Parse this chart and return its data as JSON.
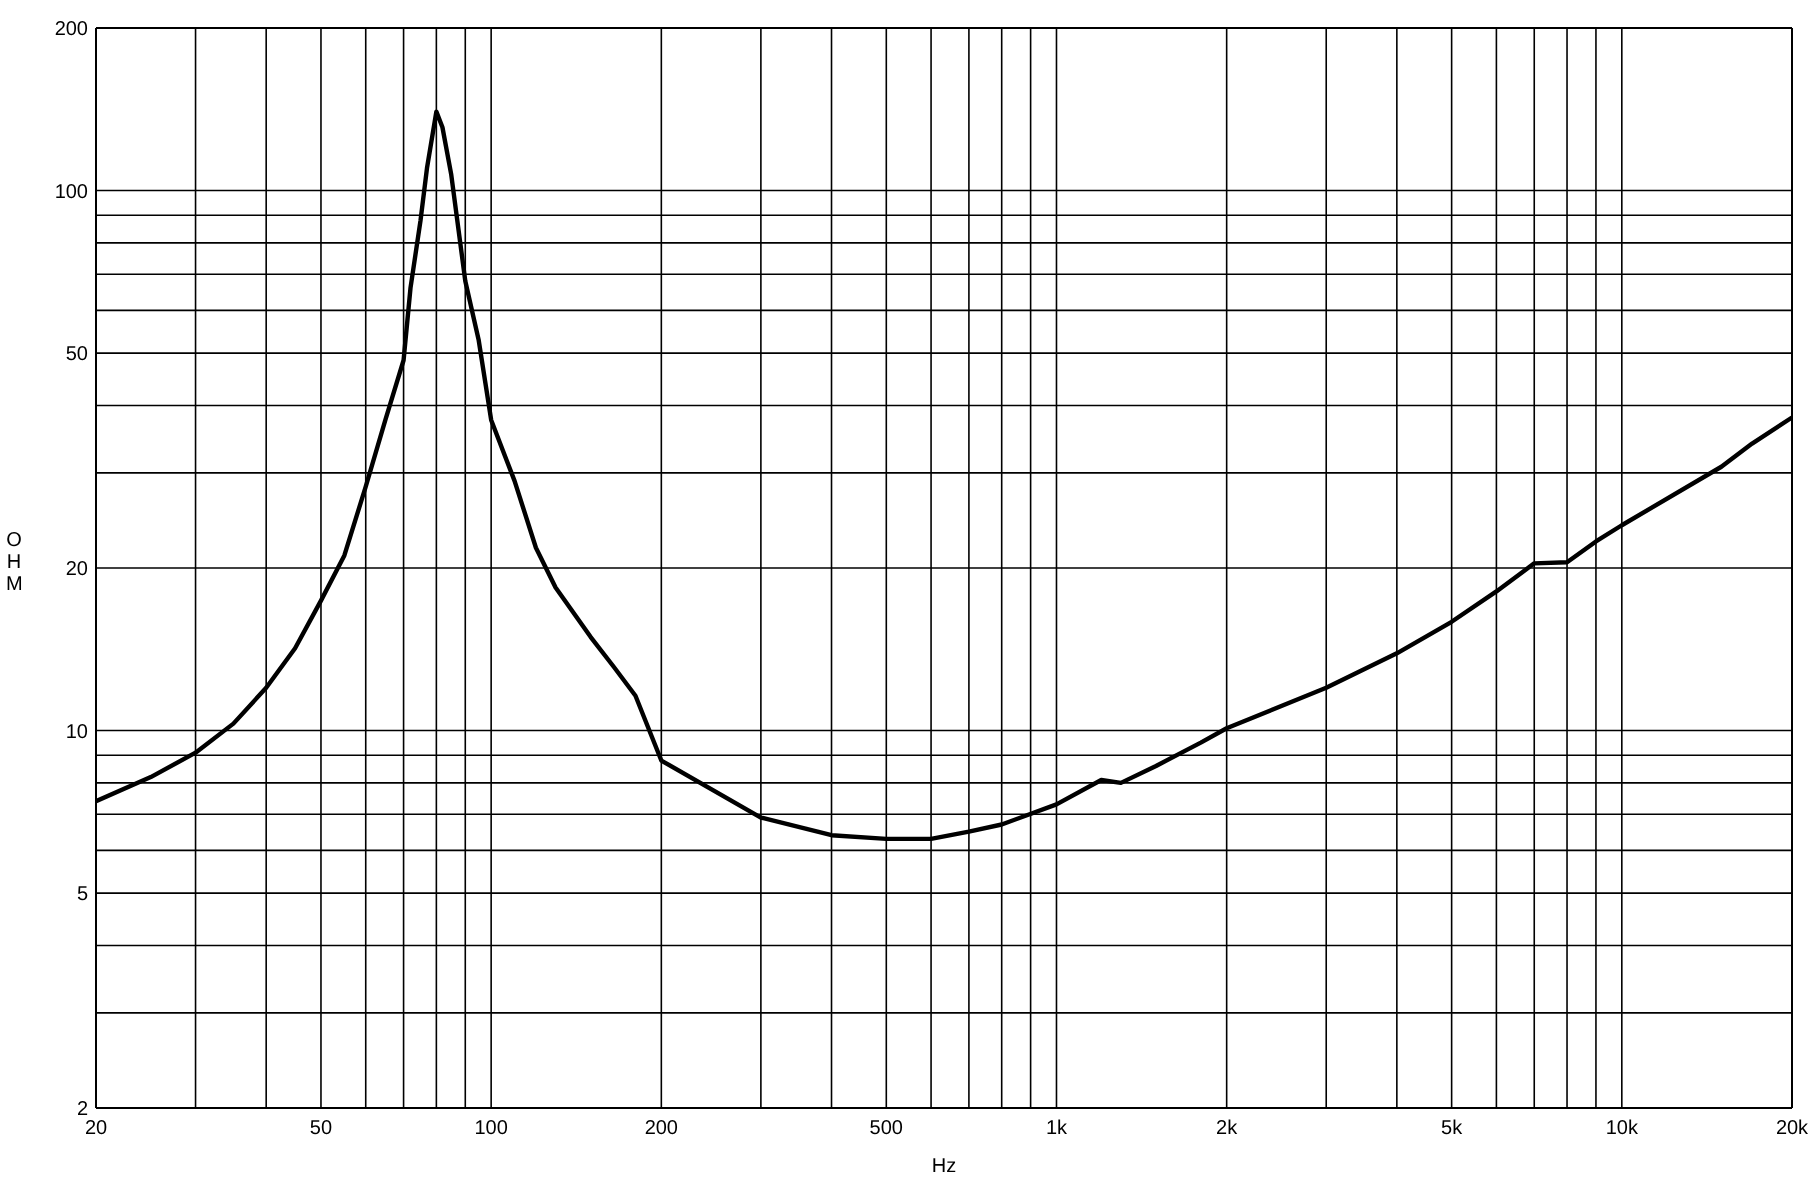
{
  "chart_data": {
    "type": "line",
    "xlabel": "Hz",
    "ylabel": "OHM",
    "log": "xy",
    "grid": true,
    "legend": false,
    "marker": "none",
    "line_style": "solid",
    "x": [
      20,
      25,
      30,
      35,
      40,
      45,
      50,
      55,
      60,
      65,
      70,
      72,
      75,
      77,
      80,
      82,
      85,
      90,
      95,
      100,
      110,
      120,
      130,
      150,
      165,
      180,
      200,
      300,
      400,
      500,
      600,
      700,
      800,
      1000,
      1200,
      1300,
      1500,
      1800,
      2000,
      3000,
      4000,
      5000,
      6000,
      7000,
      8000,
      9000,
      10000,
      15000,
      17000,
      20000
    ],
    "series": [
      {
        "color": "#000000",
        "values": [
          7.4,
          8.2,
          9.1,
          10.3,
          12.0,
          14.2,
          17.4,
          21.1,
          28.3,
          37.6,
          48.5,
          66,
          88,
          110,
          140,
          131,
          107,
          68,
          53,
          37.6,
          29,
          21.8,
          18.4,
          14.9,
          13.1,
          11.6,
          8.8,
          6.9,
          6.4,
          6.3,
          6.3,
          6.5,
          6.7,
          7.3,
          8.1,
          8.0,
          8.6,
          9.5,
          10.1,
          12.0,
          13.9,
          15.9,
          18.1,
          20.4,
          20.5,
          22.4,
          24.0,
          30.8,
          34,
          38
        ]
      }
    ],
    "xlim": [
      20,
      20000
    ],
    "xticks": [
      20,
      {
        "value": 30,
        "label": null
      },
      {
        "value": 40,
        "label": null
      },
      50,
      {
        "value": 60,
        "label": null
      },
      {
        "value": 70,
        "label": null
      },
      {
        "value": 80,
        "label": null
      },
      {
        "value": 90,
        "label": null
      },
      100,
      200,
      {
        "value": 300,
        "label": null
      },
      {
        "value": 400,
        "label": null
      },
      500,
      {
        "value": 600,
        "label": null
      },
      {
        "value": 700,
        "label": null
      },
      {
        "value": 800,
        "label": null
      },
      {
        "value": 900,
        "label": null
      },
      {
        "value": 1000,
        "label": "1k"
      },
      {
        "value": 2000,
        "label": "2k"
      },
      {
        "value": 3000,
        "label": null
      },
      {
        "value": 4000,
        "label": null
      },
      {
        "value": 5000,
        "label": "5k"
      },
      {
        "value": 6000,
        "label": null
      },
      {
        "value": 7000,
        "label": null
      },
      {
        "value": 8000,
        "label": null
      },
      {
        "value": 9000,
        "label": null
      },
      {
        "value": 10000,
        "label": "10k"
      },
      {
        "value": 20000,
        "label": "20k"
      }
    ],
    "ylim": [
      2,
      200
    ],
    "yticks": [
      2,
      {
        "value": 3,
        "label": null
      },
      {
        "value": 4,
        "label": null
      },
      5,
      {
        "value": 6,
        "label": null
      },
      {
        "value": 7,
        "label": null
      },
      {
        "value": 8,
        "label": null
      },
      {
        "value": 9,
        "label": null
      },
      10,
      20,
      {
        "value": 30,
        "label": null
      },
      {
        "value": 40,
        "label": null
      },
      50,
      {
        "value": 60,
        "label": null
      },
      {
        "value": 70,
        "label": null
      },
      {
        "value": 80,
        "label": null
      },
      {
        "value": 90,
        "label": null
      },
      100,
      200
    ]
  }
}
